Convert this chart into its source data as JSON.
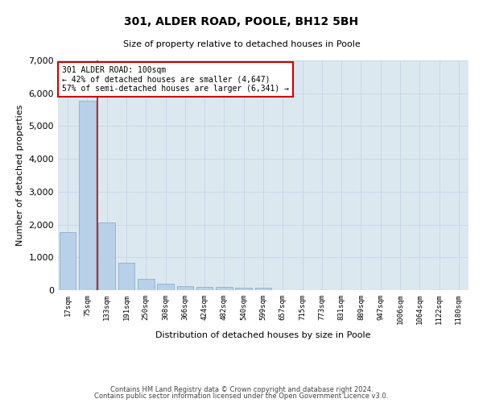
{
  "title": "301, ALDER ROAD, POOLE, BH12 5BH",
  "subtitle": "Size of property relative to detached houses in Poole",
  "xlabel": "Distribution of detached houses by size in Poole",
  "ylabel": "Number of detached properties",
  "bar_color": "#b8d0e8",
  "bar_edge_color": "#8ab0cc",
  "grid_color": "#c8d8e8",
  "background_color": "#dce8f0",
  "vline_color": "#cc0000",
  "annotation_text": "301 ALDER ROAD: 100sqm\n← 42% of detached houses are smaller (4,647)\n57% of semi-detached houses are larger (6,341) →",
  "annotation_box_color": "#ffffff",
  "annotation_box_edge": "#cc0000",
  "footer1": "Contains HM Land Registry data © Crown copyright and database right 2024.",
  "footer2": "Contains public sector information licensed under the Open Government Licence v3.0.",
  "categories": [
    "17sqm",
    "75sqm",
    "133sqm",
    "191sqm",
    "250sqm",
    "308sqm",
    "366sqm",
    "424sqm",
    "482sqm",
    "540sqm",
    "599sqm",
    "657sqm",
    "715sqm",
    "773sqm",
    "831sqm",
    "889sqm",
    "947sqm",
    "1006sqm",
    "1064sqm",
    "1122sqm",
    "1180sqm"
  ],
  "values": [
    1780,
    5780,
    2060,
    830,
    350,
    195,
    130,
    110,
    95,
    80,
    70,
    0,
    0,
    0,
    0,
    0,
    0,
    0,
    0,
    0,
    0
  ],
  "ylim": [
    0,
    7000
  ],
  "yticks": [
    0,
    1000,
    2000,
    3000,
    4000,
    5000,
    6000,
    7000
  ],
  "vline_idx": 1.5,
  "figsize": [
    6.0,
    5.0
  ],
  "dpi": 100
}
